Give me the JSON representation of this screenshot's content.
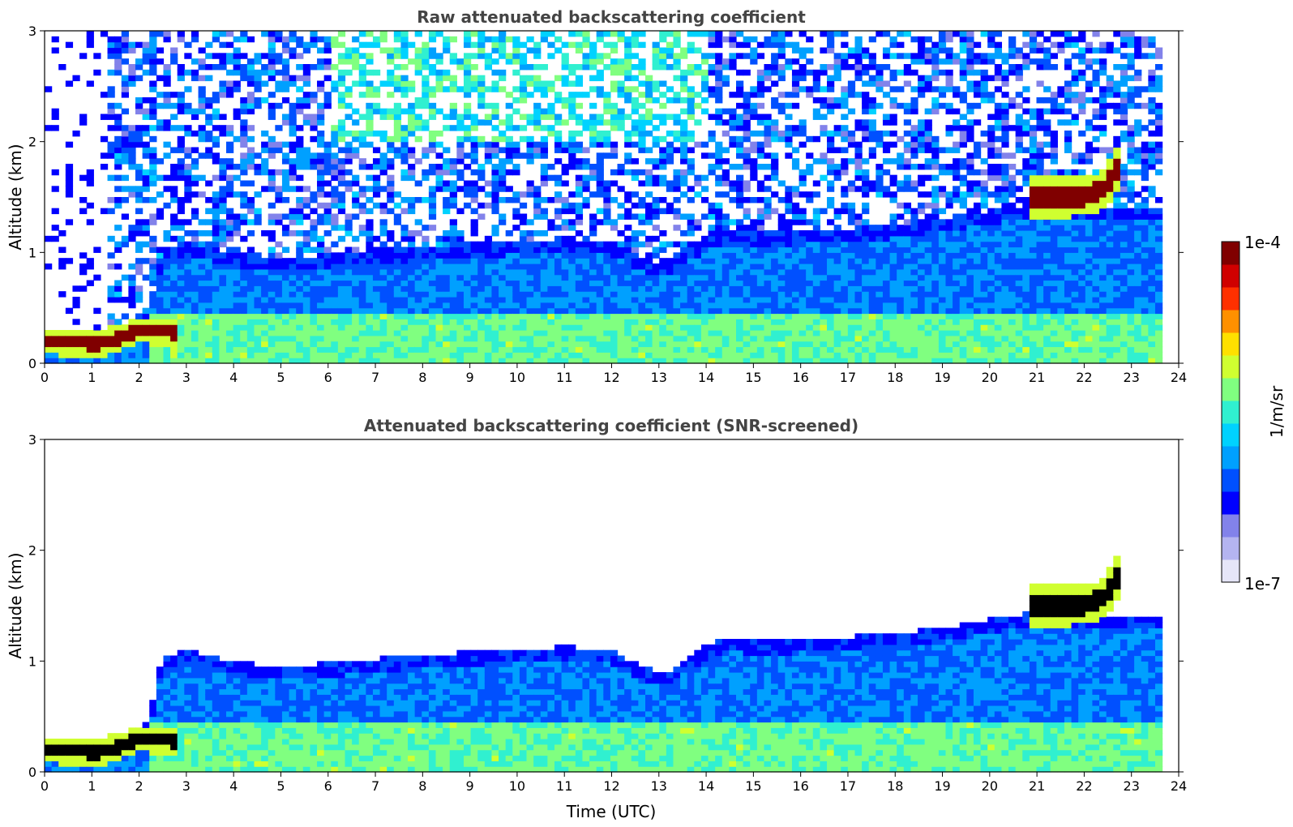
{
  "chart_data": [
    {
      "type": "heatmap",
      "title": "Raw attenuated backscattering coefficient",
      "xlabel": "",
      "ylabel": "Altitude (km)",
      "xlim": [
        0,
        24
      ],
      "ylim": [
        0,
        3
      ],
      "x_ticks": [
        "0",
        "1",
        "2",
        "3",
        "4",
        "5",
        "6",
        "7",
        "8",
        "9",
        "10",
        "11",
        "12",
        "13",
        "14",
        "15",
        "16",
        "17",
        "18",
        "19",
        "20",
        "21",
        "22",
        "23",
        "24"
      ],
      "y_ticks": [
        "0",
        "1",
        "2",
        "3"
      ],
      "data_end_time": 23.65,
      "features": [
        {
          "name": "surface aerosol layer",
          "t_start": 0,
          "t_end": 23.65,
          "alt_top": 0.45,
          "level": 0.55
        },
        {
          "name": "boundary layer",
          "boundary_top": [
            [
              0,
              0.3
            ],
            [
              1.2,
              0.3
            ],
            [
              2.2,
              0.45
            ],
            [
              2.5,
              1.05
            ],
            [
              3,
              1.1
            ],
            [
              4,
              1.0
            ],
            [
              5,
              0.95
            ],
            [
              6,
              0.98
            ],
            [
              7,
              1.02
            ],
            [
              8,
              1.06
            ],
            [
              9,
              1.08
            ],
            [
              10,
              1.1
            ],
            [
              11,
              1.13
            ],
            [
              12,
              1.1
            ],
            [
              12.6,
              0.95
            ],
            [
              13.2,
              0.9
            ],
            [
              14,
              1.15
            ],
            [
              14.6,
              1.22
            ],
            [
              15,
              1.18
            ],
            [
              16,
              1.2
            ],
            [
              17,
              1.22
            ],
            [
              18,
              1.25
            ],
            [
              19,
              1.3
            ],
            [
              20,
              1.38
            ],
            [
              21,
              1.45
            ],
            [
              22,
              1.42
            ],
            [
              23,
              1.42
            ],
            [
              23.65,
              1.42
            ]
          ],
          "level": 0.32
        },
        {
          "name": "low dense layer",
          "band": [
            [
              0,
              0.2
            ],
            [
              1.2,
              0.18
            ],
            [
              2,
              0.3
            ],
            [
              2.8,
              0.28
            ]
          ],
          "thickness": 0.12,
          "level": 1.0
        },
        {
          "name": "elevated cloud",
          "band": [
            [
              20.9,
              1.5
            ],
            [
              21.5,
              1.5
            ],
            [
              22.2,
              1.52
            ],
            [
              22.5,
              1.62
            ],
            [
              22.8,
              1.82
            ]
          ],
          "thickness": 0.18,
          "level": 1.0
        }
      ]
    },
    {
      "type": "heatmap",
      "title": "Attenuated backscattering coefficient (SNR-screened)",
      "xlabel": "Time (UTC)",
      "ylabel": "Altitude (km)",
      "xlim": [
        0,
        24
      ],
      "ylim": [
        0,
        3
      ],
      "x_ticks": [
        "0",
        "1",
        "2",
        "3",
        "4",
        "5",
        "6",
        "7",
        "8",
        "9",
        "10",
        "11",
        "12",
        "13",
        "14",
        "15",
        "16",
        "17",
        "18",
        "19",
        "20",
        "21",
        "22",
        "23",
        "24"
      ],
      "y_ticks": [
        "0",
        "1",
        "2",
        "3"
      ],
      "data_end_time": 23.65,
      "screened_above_boundary": true
    }
  ],
  "colorbar": {
    "label": "1/m/sr",
    "max_label": "1e-4",
    "min_label": "1e-7",
    "scale": "log",
    "colors": [
      "#e6e6f8",
      "#b4b4f0",
      "#8282ea",
      "#0000ff",
      "#0050ff",
      "#00a0ff",
      "#00d2ff",
      "#30f0d0",
      "#80ff80",
      "#d0ff30",
      "#ffe000",
      "#ff9000",
      "#ff3000",
      "#d00000",
      "#800000"
    ]
  }
}
